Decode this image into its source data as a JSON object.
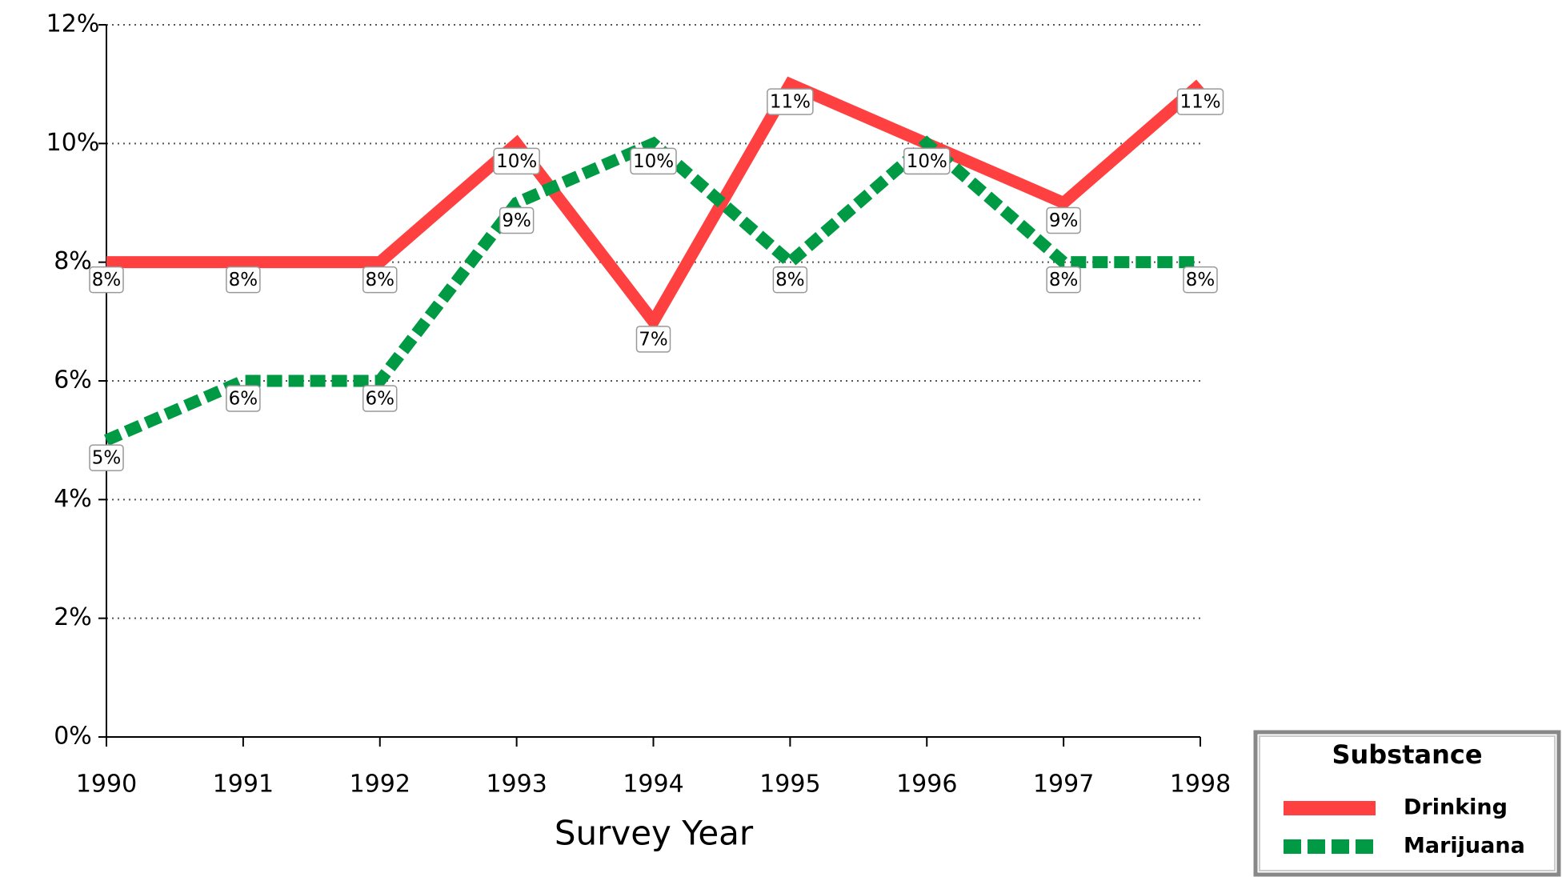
{
  "chart_data": {
    "type": "line",
    "xlabel": "Survey Year",
    "x": [
      1990,
      1991,
      1992,
      1993,
      1994,
      1995,
      1996,
      1997,
      1998
    ],
    "xlim": [
      1990,
      1998
    ],
    "xticks": [
      1990,
      1991,
      1992,
      1993,
      1994,
      1995,
      1996,
      1997,
      1998
    ],
    "ylim": [
      0,
      12
    ],
    "yticks": [
      {
        "value": 0,
        "label": "0%"
      },
      {
        "value": 2,
        "label": "2%"
      },
      {
        "value": 4,
        "label": "4%"
      },
      {
        "value": 6,
        "label": "6%"
      },
      {
        "value": 8,
        "label": "8%"
      },
      {
        "value": 10,
        "label": "10%"
      },
      {
        "value": 12,
        "label": "12%"
      }
    ],
    "grid": true,
    "legend_title": "Substance",
    "legend_position": "lower right",
    "series": [
      {
        "name": "Drinking",
        "color": "#ff4040",
        "dashed": false,
        "values": [
          8,
          8,
          8,
          10,
          7,
          11,
          10,
          9,
          11
        ],
        "value_labels": [
          "8%",
          "8%",
          "8%",
          "10%",
          "7%",
          "11%",
          "10%",
          "9%",
          "11%"
        ]
      },
      {
        "name": "Marijuana",
        "color": "#009944",
        "dashed": true,
        "values": [
          5,
          6,
          6,
          9,
          10,
          8,
          10,
          8,
          8
        ],
        "value_labels": [
          "5%",
          "6%",
          "6%",
          "9%",
          "10%",
          "8%",
          "10%",
          "8%",
          "8%"
        ]
      }
    ]
  }
}
